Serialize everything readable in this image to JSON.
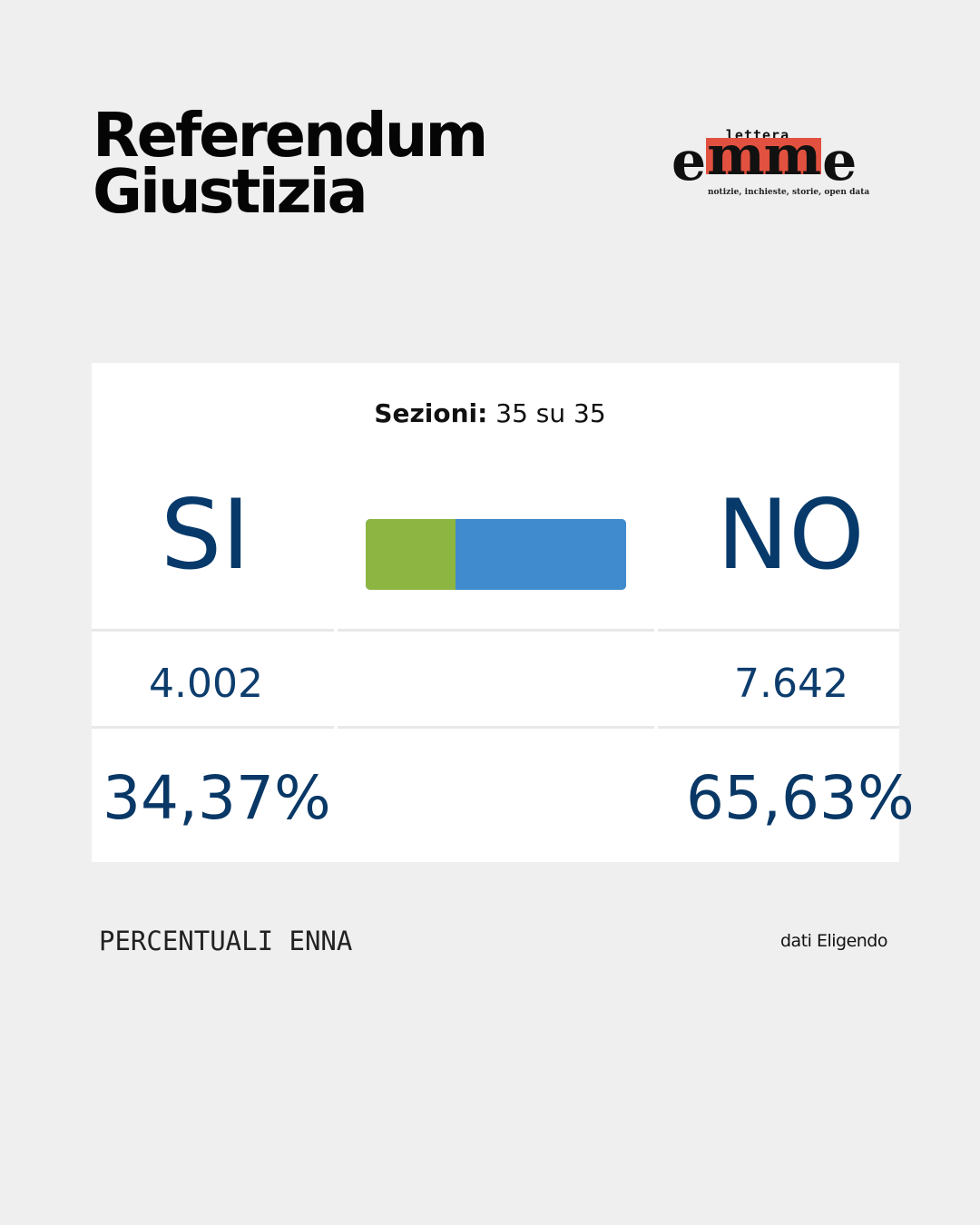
{
  "header": {
    "title_line1": "Referendum",
    "title_line2": "Giustizia"
  },
  "logo": {
    "top": "lettera",
    "part1": "e",
    "part_red": "mm",
    "part2": "e",
    "tagline": "notizie, inchieste, storie, open data",
    "accent_color": "#e2513f"
  },
  "results": {
    "sections_label": "Sezioni:",
    "sections_value": "35 su 35",
    "yes": {
      "label": "SI",
      "votes": "4.002",
      "percent": "34,37%",
      "share": 34.37,
      "color": "#8db542"
    },
    "no": {
      "label": "NO",
      "votes": "7.642",
      "percent": "65,63%",
      "share": 65.63,
      "color": "#3f8bcd"
    }
  },
  "footer": {
    "caption": "PERCENTUALI ENNA",
    "source": "dati Eligendo"
  }
}
